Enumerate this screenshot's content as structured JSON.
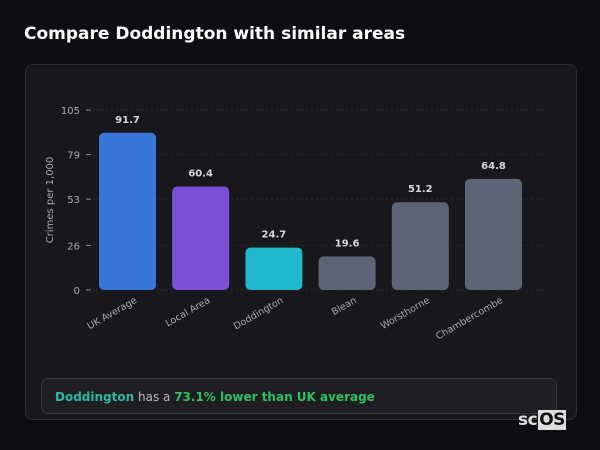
{
  "title": "Compare Doddington with similar areas",
  "chart_data": {
    "type": "bar",
    "categories": [
      "UK Average",
      "Local Area",
      "Doddington",
      "Blean",
      "Worsthorne",
      "Chambercombe"
    ],
    "values": [
      91.7,
      60.4,
      24.7,
      19.6,
      51.2,
      64.8
    ],
    "labels": [
      "91.7",
      "60.4",
      "24.7",
      "19.6",
      "51.2",
      "64.8"
    ],
    "colors": [
      "#3877d9",
      "#7b4fd6",
      "#1fb8cf",
      "#5b6576",
      "#5b6576",
      "#5b6576"
    ],
    "ylabel": "Crimes per 1,000",
    "yticks": [
      0,
      26,
      53,
      79,
      105
    ],
    "ylim": [
      0,
      105
    ],
    "grid": true
  },
  "summary": {
    "area": "Doddington",
    "mid": "has a",
    "comparison": "73.1% lower than UK average"
  },
  "logo": {
    "prefix": "sc",
    "suffix": "OS"
  }
}
